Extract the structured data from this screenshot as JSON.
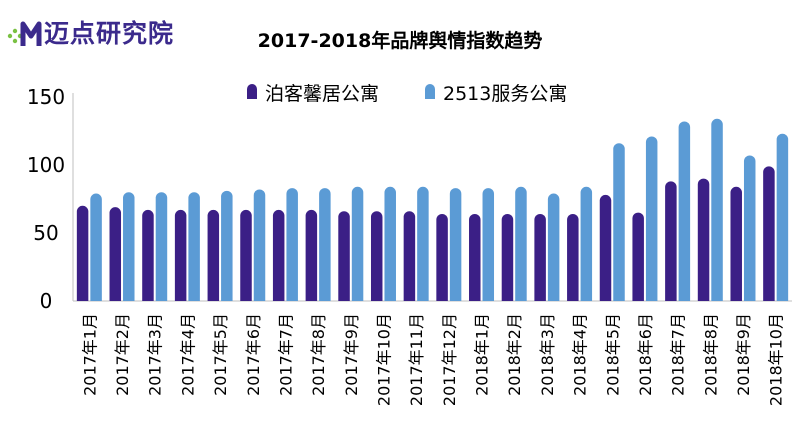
{
  "logo": {
    "text": "迈点研究院",
    "icon": "dotted-m-logo-icon"
  },
  "chart_data": {
    "type": "bar",
    "title": "2017-2018年品牌舆情指数趋势",
    "xlabel": "",
    "ylabel": "",
    "ylim": [
      0,
      150
    ],
    "yticks": [
      0,
      50,
      100,
      150
    ],
    "grid": false,
    "legend_position": "top",
    "categories": [
      "2017年1月",
      "2017年2月",
      "2017年3月",
      "2017年4月",
      "2017年5月",
      "2017年6月",
      "2017年7月",
      "2017年8月",
      "2017年9月",
      "2017年10月",
      "2017年11月",
      "2017年12月",
      "2018年1月",
      "2018年2月",
      "2018年3月",
      "2018年4月",
      "2018年5月",
      "2018年6月",
      "2018年7月",
      "2018年8月",
      "2018年9月",
      "2018年10月"
    ],
    "series": [
      {
        "name": "泊客馨居公寓",
        "color": "#3b1f86",
        "values": [
          70,
          69,
          67,
          67,
          67,
          67,
          67,
          67,
          66,
          66,
          66,
          64,
          64,
          64,
          64,
          64,
          78,
          65,
          88,
          90,
          84,
          99
        ]
      },
      {
        "name": "2513服务公寓",
        "color": "#5b9bd5",
        "values": [
          79,
          80,
          80,
          80,
          81,
          82,
          83,
          83,
          84,
          84,
          84,
          83,
          83,
          84,
          79,
          84,
          116,
          121,
          132,
          134,
          107,
          123
        ]
      }
    ]
  }
}
